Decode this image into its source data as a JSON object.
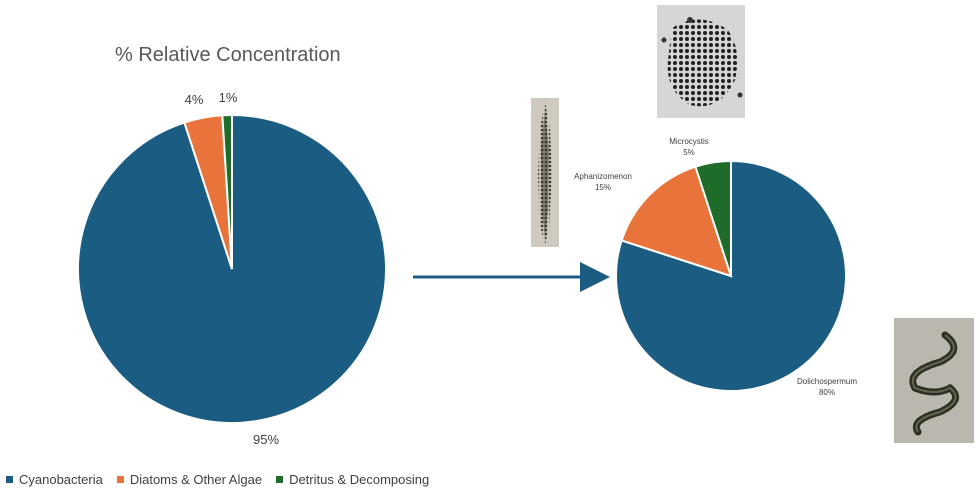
{
  "left_title": "% Relative Concentration",
  "colors": {
    "blue": "#1b5c82",
    "orange": "#e8743b",
    "green": "#1e6b2a"
  },
  "legend": [
    {
      "label": "Cyanobacteria",
      "color": "#1b5c82"
    },
    {
      "label": "Diatoms & Other Algae",
      "color": "#e8743b"
    },
    {
      "label": "Detritus & Decomposing",
      "color": "#1e6b2a"
    }
  ],
  "chart_data": [
    {
      "type": "pie",
      "title": "% Relative Concentration",
      "categories": [
        "Cyanobacteria",
        "Diatoms & Other Algae",
        "Detritus & Decomposing"
      ],
      "values": [
        95,
        4,
        1
      ],
      "labels": [
        "95%",
        "4%",
        "1%"
      ]
    },
    {
      "type": "pie",
      "title": "",
      "categories": [
        "Dolichospermum",
        "Aphanizomenon",
        "Microcystis"
      ],
      "values": [
        80,
        15,
        5
      ],
      "labels": [
        "80%",
        "15%",
        "5%"
      ]
    }
  ],
  "images": [
    {
      "name": "microcystis-image"
    },
    {
      "name": "aphanizomenon-image"
    },
    {
      "name": "dolichospermum-image"
    }
  ]
}
